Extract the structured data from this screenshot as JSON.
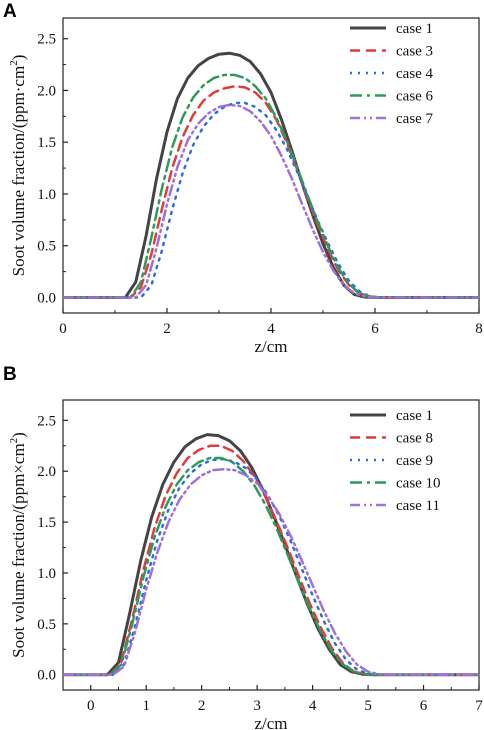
{
  "chart_data": [
    {
      "panel_label": "A",
      "type": "line",
      "xlabel": "z/cm",
      "ylabel": "Soot volume fraction/(ppm·cm",
      "ylabel_sup": "2",
      "ylabel_end": ")",
      "xlim": [
        0,
        8
      ],
      "ylim": [
        -0.15,
        2.7
      ],
      "xticks": [
        0,
        2,
        4,
        6,
        8
      ],
      "yticks": [
        0.0,
        0.5,
        1.0,
        1.5,
        2.0,
        2.5
      ],
      "xtick_labels": [
        "0",
        "2",
        "4",
        "6",
        "8"
      ],
      "ytick_labels": [
        "0.0",
        "0.5",
        "1.0",
        "1.5",
        "2.0",
        "2.5"
      ],
      "legend_position": "top-right",
      "series": [
        {
          "name": "case 1",
          "color": "#444444",
          "dash": "solid",
          "width": 3,
          "x": [
            0,
            1.2,
            1.4,
            1.6,
            1.8,
            2.0,
            2.2,
            2.4,
            2.6,
            2.8,
            3.0,
            3.2,
            3.4,
            3.6,
            3.8,
            4.0,
            4.2,
            4.4,
            4.6,
            4.8,
            5.0,
            5.2,
            5.4,
            5.6,
            5.8,
            6.0,
            8
          ],
          "y": [
            0,
            0,
            0.15,
            0.6,
            1.15,
            1.6,
            1.92,
            2.12,
            2.24,
            2.31,
            2.35,
            2.36,
            2.34,
            2.28,
            2.16,
            1.98,
            1.72,
            1.42,
            1.1,
            0.8,
            0.52,
            0.29,
            0.12,
            0.03,
            0.005,
            0,
            0
          ]
        },
        {
          "name": "case 3",
          "color": "#e03c3c",
          "dash": "10,6",
          "width": 2.5,
          "x": [
            0,
            1.3,
            1.5,
            1.7,
            1.9,
            2.1,
            2.3,
            2.5,
            2.7,
            2.9,
            3.1,
            3.3,
            3.5,
            3.7,
            3.9,
            4.1,
            4.3,
            4.5,
            4.7,
            4.9,
            5.1,
            5.3,
            5.5,
            5.7,
            5.9,
            6.1,
            8
          ],
          "y": [
            0,
            0,
            0.1,
            0.42,
            0.85,
            1.25,
            1.55,
            1.76,
            1.9,
            1.98,
            2.02,
            2.04,
            2.03,
            1.98,
            1.88,
            1.72,
            1.5,
            1.24,
            0.96,
            0.7,
            0.46,
            0.26,
            0.12,
            0.04,
            0.01,
            0,
            0
          ]
        },
        {
          "name": "case 4",
          "color": "#2a6fdb",
          "dash": "2,6",
          "width": 2.5,
          "x": [
            0,
            1.5,
            1.7,
            1.9,
            2.1,
            2.3,
            2.5,
            2.7,
            2.9,
            3.1,
            3.3,
            3.5,
            3.7,
            3.9,
            4.1,
            4.3,
            4.5,
            4.7,
            4.9,
            5.1,
            5.3,
            5.5,
            5.7,
            5.9,
            6.1,
            8
          ],
          "y": [
            0,
            0,
            0.12,
            0.45,
            0.85,
            1.2,
            1.47,
            1.65,
            1.77,
            1.84,
            1.88,
            1.88,
            1.84,
            1.76,
            1.62,
            1.44,
            1.22,
            0.98,
            0.74,
            0.52,
            0.32,
            0.16,
            0.06,
            0.01,
            0,
            0
          ]
        },
        {
          "name": "case 6",
          "color": "#2e9a5a",
          "dash": "12,5,3,5",
          "width": 2.5,
          "x": [
            0,
            1.3,
            1.5,
            1.7,
            1.9,
            2.1,
            2.3,
            2.5,
            2.7,
            2.9,
            3.1,
            3.3,
            3.5,
            3.7,
            3.9,
            4.1,
            4.3,
            4.5,
            4.7,
            4.9,
            5.1,
            5.3,
            5.5,
            5.7,
            5.9,
            6.1,
            8
          ],
          "y": [
            0,
            0,
            0.15,
            0.58,
            1.05,
            1.45,
            1.74,
            1.93,
            2.05,
            2.12,
            2.15,
            2.15,
            2.12,
            2.04,
            1.92,
            1.74,
            1.52,
            1.26,
            0.99,
            0.73,
            0.49,
            0.28,
            0.13,
            0.04,
            0.01,
            0,
            0
          ]
        },
        {
          "name": "case 7",
          "color": "#a070d8",
          "dash": "10,4,2,4,2,4",
          "width": 2.5,
          "x": [
            0,
            1.4,
            1.6,
            1.8,
            2.0,
            2.2,
            2.4,
            2.6,
            2.8,
            3.0,
            3.2,
            3.4,
            3.6,
            3.8,
            4.0,
            4.2,
            4.4,
            4.6,
            4.8,
            5.0,
            5.2,
            5.4,
            5.6,
            5.8,
            6.0,
            8
          ],
          "y": [
            0,
            0,
            0.12,
            0.48,
            0.9,
            1.26,
            1.52,
            1.68,
            1.78,
            1.84,
            1.86,
            1.85,
            1.8,
            1.7,
            1.56,
            1.37,
            1.15,
            0.9,
            0.66,
            0.44,
            0.26,
            0.12,
            0.04,
            0.01,
            0,
            0
          ]
        }
      ]
    },
    {
      "panel_label": "B",
      "type": "line",
      "xlabel": "z/cm",
      "ylabel": "Soot volume fraction/(ppm×cm",
      "ylabel_sup": "2",
      "ylabel_end": ")",
      "xlim": [
        -0.5,
        7
      ],
      "ylim": [
        -0.15,
        2.7
      ],
      "xticks": [
        0,
        1,
        2,
        3,
        4,
        5,
        6,
        7
      ],
      "yticks": [
        0.0,
        0.5,
        1.0,
        1.5,
        2.0,
        2.5
      ],
      "xtick_labels": [
        "0",
        "1",
        "2",
        "3",
        "4",
        "5",
        "6",
        "7"
      ],
      "ytick_labels": [
        "0.0",
        "0.5",
        "1.0",
        "1.5",
        "2.0",
        "2.5"
      ],
      "legend_position": "top-right",
      "series": [
        {
          "name": "case 1",
          "color": "#444444",
          "dash": "solid",
          "width": 3,
          "x": [
            -0.5,
            0.3,
            0.5,
            0.7,
            0.9,
            1.1,
            1.3,
            1.5,
            1.7,
            1.9,
            2.1,
            2.3,
            2.5,
            2.7,
            2.9,
            3.1,
            3.3,
            3.5,
            3.7,
            3.9,
            4.1,
            4.3,
            4.5,
            4.7,
            4.9,
            5.1,
            5.3,
            7
          ],
          "y": [
            0,
            0,
            0.12,
            0.6,
            1.12,
            1.55,
            1.87,
            2.09,
            2.24,
            2.32,
            2.36,
            2.35,
            2.3,
            2.2,
            2.04,
            1.82,
            1.56,
            1.28,
            0.98,
            0.7,
            0.45,
            0.25,
            0.1,
            0.03,
            0.005,
            0,
            0,
            0
          ]
        },
        {
          "name": "case 8",
          "color": "#e03c3c",
          "dash": "10,6",
          "width": 2.5,
          "x": [
            -0.5,
            0.35,
            0.55,
            0.75,
            0.95,
            1.15,
            1.35,
            1.55,
            1.75,
            1.95,
            2.15,
            2.35,
            2.55,
            2.75,
            2.95,
            3.15,
            3.35,
            3.55,
            3.75,
            3.95,
            4.15,
            4.35,
            4.55,
            4.75,
            4.95,
            5.15,
            7
          ],
          "y": [
            0,
            0,
            0.12,
            0.55,
            1.03,
            1.44,
            1.76,
            1.98,
            2.13,
            2.21,
            2.25,
            2.25,
            2.2,
            2.1,
            1.95,
            1.75,
            1.51,
            1.25,
            0.97,
            0.7,
            0.46,
            0.26,
            0.11,
            0.03,
            0.005,
            0,
            0
          ]
        },
        {
          "name": "case 9",
          "color": "#2a6fdb",
          "dash": "2,6",
          "width": 2.5,
          "x": [
            -0.5,
            0.4,
            0.6,
            0.8,
            1.0,
            1.2,
            1.4,
            1.6,
            1.8,
            2.0,
            2.2,
            2.4,
            2.6,
            2.8,
            3.0,
            3.2,
            3.4,
            3.6,
            3.8,
            4.0,
            4.2,
            4.4,
            4.6,
            4.8,
            5.0,
            5.2,
            7
          ],
          "y": [
            0,
            0,
            0.1,
            0.48,
            0.93,
            1.32,
            1.62,
            1.84,
            1.98,
            2.07,
            2.11,
            2.12,
            2.09,
            2.03,
            1.92,
            1.76,
            1.56,
            1.32,
            1.05,
            0.78,
            0.53,
            0.31,
            0.15,
            0.05,
            0.01,
            0,
            0
          ]
        },
        {
          "name": "case 10",
          "color": "#2e9a5a",
          "dash": "12,5,3,5",
          "width": 2.5,
          "x": [
            -0.5,
            0.35,
            0.55,
            0.75,
            0.95,
            1.15,
            1.35,
            1.55,
            1.75,
            1.95,
            2.15,
            2.35,
            2.55,
            2.75,
            2.95,
            3.15,
            3.35,
            3.55,
            3.75,
            3.95,
            4.15,
            4.35,
            4.55,
            4.75,
            4.95,
            5.15,
            7
          ],
          "y": [
            0,
            0,
            0.1,
            0.5,
            0.96,
            1.35,
            1.65,
            1.87,
            2.01,
            2.09,
            2.13,
            2.13,
            2.09,
            2.0,
            1.86,
            1.67,
            1.44,
            1.18,
            0.91,
            0.65,
            0.42,
            0.23,
            0.1,
            0.03,
            0.005,
            0,
            0
          ]
        },
        {
          "name": "case 11",
          "color": "#a070d8",
          "dash": "10,4,2,4,2,4",
          "width": 2.5,
          "x": [
            -0.5,
            0.4,
            0.6,
            0.8,
            1.0,
            1.2,
            1.4,
            1.6,
            1.8,
            2.0,
            2.2,
            2.4,
            2.6,
            2.8,
            3.0,
            3.2,
            3.4,
            3.6,
            3.8,
            4.0,
            4.2,
            4.4,
            4.6,
            4.8,
            5.0,
            5.2,
            5.4,
            7
          ],
          "y": [
            0,
            0,
            0.08,
            0.42,
            0.84,
            1.2,
            1.5,
            1.72,
            1.87,
            1.96,
            2.01,
            2.02,
            2.01,
            1.96,
            1.88,
            1.75,
            1.58,
            1.37,
            1.13,
            0.88,
            0.63,
            0.41,
            0.23,
            0.1,
            0.03,
            0.005,
            0,
            0
          ]
        }
      ]
    }
  ]
}
